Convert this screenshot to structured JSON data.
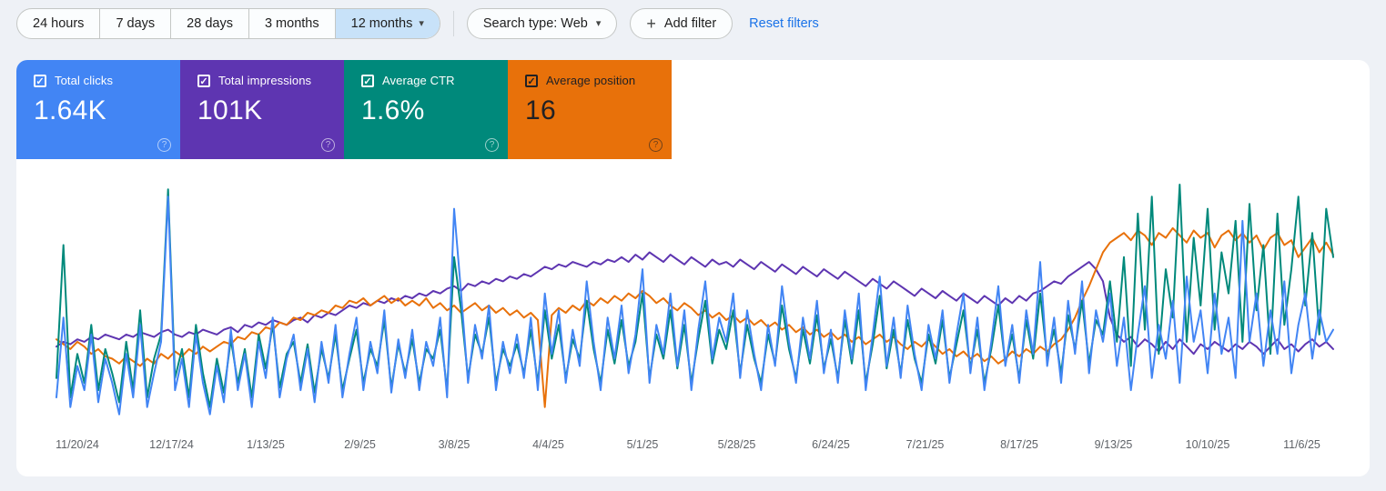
{
  "icons": {
    "checkbox_checked": "✓",
    "help": "?",
    "caret": "▾",
    "plus": "+"
  },
  "toolbar": {
    "date_ranges": [
      {
        "label": "24 hours",
        "selected": false
      },
      {
        "label": "7 days",
        "selected": false
      },
      {
        "label": "28 days",
        "selected": false
      },
      {
        "label": "3 months",
        "selected": false
      },
      {
        "label": "12 months",
        "selected": true
      }
    ],
    "search_type_label": "Search type: Web",
    "add_filter_label": "Add filter",
    "reset_filters_label": "Reset filters",
    "accent_color": "#1a73e8",
    "selected_chip_color": "#c8e2f9"
  },
  "metric_cards": [
    {
      "label": "Total clicks",
      "value": "1.64K",
      "color": "#4285f4",
      "text_color": "#ffffff",
      "checked": true
    },
    {
      "label": "Total impressions",
      "value": "101K",
      "color": "#5e35b1",
      "text_color": "#ffffff",
      "checked": true
    },
    {
      "label": "Average CTR",
      "value": "1.6%",
      "color": "#00897b",
      "text_color": "#ffffff",
      "checked": true
    },
    {
      "label": "Average position",
      "value": "16",
      "color": "#e8710a",
      "text_color": "#212124",
      "checked": true
    }
  ],
  "chart_data": {
    "type": "line",
    "title": "",
    "xlabel": "",
    "ylabel": "",
    "grid": false,
    "legend_position": "none",
    "ylim": [
      0,
      100
    ],
    "note": "Values are normalized 0-100 of plot height, sampled every 2 days over 12 months (daily noisy traffic data, no y-axis shown in UI)",
    "x_total_days": 366,
    "x_tick_days": [
      6,
      33,
      60,
      87,
      114,
      141,
      168,
      195,
      222,
      249,
      276,
      303,
      330,
      357
    ],
    "x_tick_labels": [
      "11/20/24",
      "12/17/24",
      "1/13/25",
      "2/9/25",
      "3/8/25",
      "4/4/25",
      "5/1/25",
      "5/28/25",
      "6/24/25",
      "7/21/25",
      "8/17/25",
      "9/13/25",
      "10/10/25",
      "11/6/25"
    ],
    "draw_order": [
      1,
      3,
      2,
      0
    ],
    "series": [
      {
        "name": "Clicks",
        "color": "#4285f4",
        "values": [
          12,
          45,
          8,
          25,
          15,
          38,
          10,
          28,
          18,
          5,
          30,
          12,
          42,
          8,
          22,
          35,
          95,
          15,
          28,
          8,
          38,
          18,
          5,
          25,
          10,
          40,
          15,
          30,
          8,
          35,
          20,
          45,
          12,
          28,
          38,
          15,
          32,
          10,
          35,
          18,
          42,
          12,
          30,
          45,
          15,
          35,
          22,
          48,
          14,
          36,
          20,
          40,
          15,
          35,
          25,
          45,
          12,
          90,
          55,
          18,
          42,
          28,
          50,
          15,
          35,
          22,
          38,
          20,
          45,
          15,
          55,
          30,
          48,
          18,
          40,
          25,
          60,
          35,
          15,
          45,
          28,
          50,
          22,
          38,
          65,
          18,
          42,
          30,
          55,
          25,
          48,
          15,
          40,
          60,
          28,
          45,
          35,
          55,
          20,
          48,
          30,
          15,
          42,
          25,
          58,
          35,
          18,
          45,
          28,
          52,
          22,
          40,
          18,
          48,
          28,
          55,
          15,
          38,
          62,
          25,
          45,
          20,
          50,
          30,
          15,
          42,
          28,
          48,
          18,
          38,
          55,
          22,
          45,
          15,
          35,
          58,
          25,
          42,
          18,
          48,
          30,
          68,
          25,
          45,
          18,
          52,
          30,
          60,
          22,
          48,
          35,
          55,
          25,
          45,
          15,
          38,
          58,
          20,
          42,
          28,
          52,
          18,
          62,
          35,
          48,
          22,
          55,
          30,
          45,
          20,
          85,
          35,
          55,
          25,
          48,
          30,
          60,
          22,
          42,
          55,
          28,
          48,
          35,
          40
        ]
      },
      {
        "name": "Impressions",
        "color": "#5e35b1",
        "values": [
          33,
          35,
          34,
          36,
          35,
          37,
          36,
          38,
          37,
          36,
          38,
          37,
          39,
          38,
          37,
          39,
          40,
          38,
          37,
          39,
          38,
          40,
          39,
          38,
          40,
          41,
          39,
          42,
          41,
          43,
          42,
          44,
          43,
          42,
          44,
          45,
          43,
          46,
          45,
          47,
          46,
          48,
          50,
          49,
          51,
          50,
          52,
          51,
          53,
          52,
          54,
          53,
          55,
          54,
          56,
          55,
          57,
          58,
          56,
          59,
          58,
          60,
          59,
          61,
          60,
          62,
          61,
          63,
          62,
          64,
          66,
          65,
          67,
          66,
          68,
          67,
          66,
          68,
          67,
          69,
          68,
          70,
          68,
          71,
          69,
          72,
          70,
          68,
          71,
          69,
          67,
          70,
          68,
          66,
          69,
          67,
          68,
          66,
          69,
          67,
          65,
          68,
          66,
          64,
          67,
          65,
          63,
          66,
          64,
          62,
          65,
          63,
          61,
          64,
          62,
          60,
          58,
          61,
          59,
          57,
          60,
          58,
          56,
          54,
          57,
          55,
          53,
          56,
          54,
          52,
          55,
          53,
          51,
          54,
          52,
          50,
          53,
          51,
          54,
          52,
          55,
          56,
          58,
          60,
          59,
          62,
          64,
          66,
          68,
          65,
          60,
          45,
          38,
          35,
          37,
          33,
          36,
          34,
          31,
          35,
          32,
          36,
          33,
          30,
          34,
          32,
          35,
          33,
          31,
          34,
          32,
          35,
          33,
          30,
          33,
          36,
          32,
          34,
          31,
          34,
          36,
          33,
          35,
          32
        ]
      },
      {
        "name": "CTR",
        "color": "#00897b",
        "values": [
          20,
          75,
          12,
          30,
          18,
          42,
          15,
          32,
          22,
          10,
          35,
          15,
          48,
          12,
          28,
          38,
          98,
          20,
          32,
          12,
          42,
          22,
          8,
          28,
          14,
          36,
          18,
          32,
          12,
          38,
          24,
          42,
          16,
          30,
          35,
          18,
          34,
          14,
          32,
          20,
          38,
          15,
          28,
          40,
          18,
          32,
          25,
          44,
          16,
          34,
          22,
          36,
          18,
          32,
          28,
          40,
          15,
          70,
          48,
          20,
          38,
          30,
          45,
          18,
          32,
          25,
          34,
          22,
          40,
          18,
          48,
          28,
          42,
          20,
          36,
          28,
          52,
          32,
          18,
          40,
          26,
          44,
          25,
          35,
          55,
          20,
          38,
          28,
          48,
          24,
          42,
          18,
          36,
          52,
          26,
          40,
          32,
          48,
          22,
          42,
          28,
          18,
          38,
          26,
          50,
          32,
          20,
          40,
          26,
          46,
          24,
          36,
          20,
          44,
          26,
          48,
          18,
          34,
          54,
          24,
          40,
          22,
          44,
          28,
          18,
          38,
          26,
          44,
          20,
          34,
          48,
          24,
          40,
          18,
          32,
          50,
          26,
          38,
          20,
          44,
          28,
          55,
          28,
          40,
          22,
          46,
          32,
          52,
          26,
          44,
          38,
          60,
          35,
          70,
          25,
          88,
          40,
          95,
          30,
          65,
          45,
          100,
          35,
          78,
          50,
          90,
          40,
          72,
          55,
          85,
          35,
          92,
          48,
          75,
          30,
          88,
          42,
          65,
          95,
          50,
          80,
          38,
          90,
          70
        ]
      },
      {
        "name": "Position",
        "color": "#e8710a",
        "values": [
          36,
          34,
          32,
          35,
          33,
          30,
          32,
          29,
          28,
          26,
          29,
          27,
          25,
          28,
          26,
          30,
          28,
          31,
          29,
          32,
          30,
          33,
          31,
          33,
          35,
          34,
          37,
          36,
          39,
          38,
          41,
          40,
          43,
          42,
          45,
          44,
          47,
          46,
          48,
          47,
          50,
          49,
          52,
          51,
          53,
          50,
          52,
          54,
          51,
          53,
          50,
          52,
          50,
          53,
          49,
          51,
          48,
          50,
          47,
          49,
          51,
          48,
          50,
          47,
          49,
          46,
          48,
          45,
          47,
          44,
          8,
          46,
          49,
          47,
          50,
          48,
          52,
          50,
          53,
          51,
          54,
          52,
          55,
          53,
          56,
          54,
          51,
          53,
          50,
          48,
          51,
          49,
          46,
          48,
          45,
          47,
          44,
          46,
          43,
          45,
          42,
          44,
          41,
          43,
          40,
          42,
          39,
          41,
          38,
          40,
          37,
          39,
          36,
          38,
          35,
          37,
          34,
          36,
          38,
          35,
          37,
          34,
          32,
          35,
          33,
          36,
          33,
          30,
          32,
          29,
          31,
          28,
          30,
          27,
          29,
          26,
          28,
          31,
          29,
          32,
          30,
          33,
          31,
          34,
          36,
          40,
          45,
          52,
          58,
          65,
          72,
          76,
          78,
          80,
          77,
          81,
          79,
          75,
          80,
          78,
          82,
          79,
          76,
          81,
          78,
          80,
          74,
          79,
          81,
          77,
          80,
          76,
          79,
          73,
          78,
          80,
          75,
          77,
          70,
          74,
          78,
          72,
          76,
          71
        ]
      }
    ]
  }
}
